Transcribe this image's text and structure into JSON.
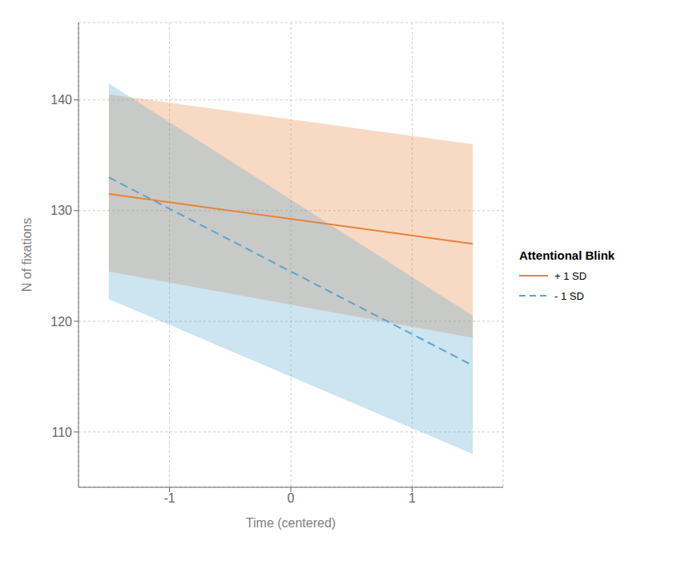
{
  "chart_data": {
    "type": "line",
    "title": "Attentional Blink",
    "xlabel": "Time (centered)",
    "ylabel": "N of fixations",
    "x": [
      -1.5,
      1.5
    ],
    "series": [
      {
        "name": "+ 1 SD",
        "color": "#E8833A",
        "line_style": "solid",
        "values": [
          131.5,
          127.0
        ],
        "ci_upper": [
          140.5,
          136.0
        ],
        "ci_lower": [
          124.5,
          118.5
        ]
      },
      {
        "name": "- 1 SD",
        "color": "#5BA4CF",
        "line_style": "dashed",
        "values": [
          133.0,
          116.0
        ],
        "ci_upper": [
          141.5,
          120.5
        ],
        "ci_lower": [
          122.0,
          108.0
        ]
      }
    ],
    "xlim": [
      -1.75,
      1.75
    ],
    "ylim": [
      105,
      147
    ],
    "xticks": [
      -1,
      0,
      1
    ],
    "yticks": [
      110,
      120,
      130,
      140
    ],
    "grid": true,
    "legend": "right"
  }
}
